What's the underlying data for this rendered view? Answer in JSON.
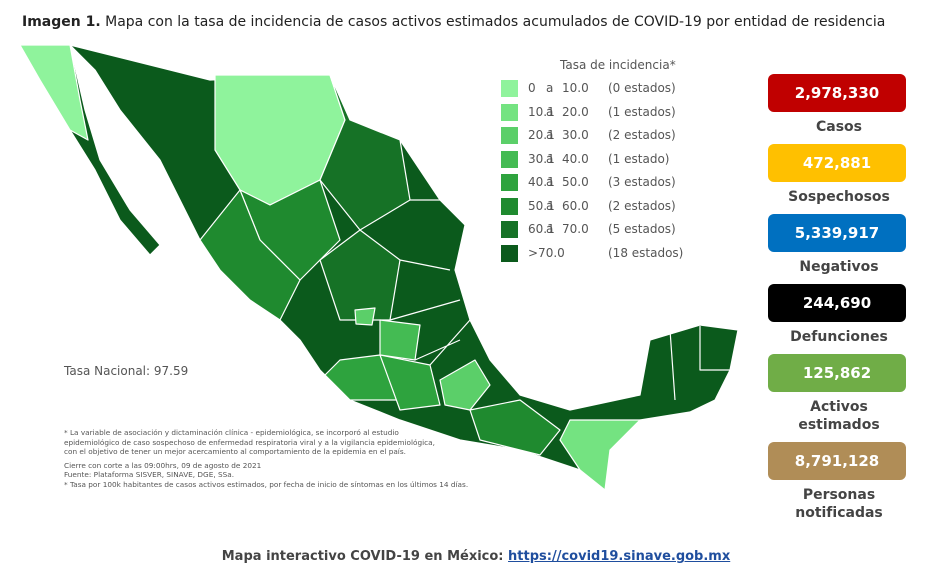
{
  "header": {
    "label": "Imagen 1.",
    "title": "Mapa con la tasa de incidencia de casos activos estimados acumulados de COVID-19 por entidad de residencia"
  },
  "legend": {
    "title": "Tasa de incidencia*",
    "connector": "a",
    "items": [
      {
        "from": "0",
        "to": "10.0",
        "count": "(0 estados)",
        "color": "#8ff39c"
      },
      {
        "from": "10.1",
        "to": "20.0",
        "count": "(1 estados)",
        "color": "#74e381"
      },
      {
        "from": "20.1",
        "to": "30.0",
        "count": "(2 estados)",
        "color": "#5bcf69"
      },
      {
        "from": "30.1",
        "to": "40.0",
        "count": "(1 estado)",
        "color": "#44bb53"
      },
      {
        "from": "40.1",
        "to": "50.0",
        "count": "(3 estados)",
        "color": "#2ea33e"
      },
      {
        "from": "50.1",
        "to": "60.0",
        "count": "(2 estados)",
        "color": "#1f8a2f"
      },
      {
        "from": "60.1",
        "to": "70.0",
        "count": "(5 estados)",
        "color": "#167226"
      },
      {
        "from": ">70.0",
        "count": "(18 estados)",
        "color": "#0b5a1c"
      }
    ]
  },
  "national_rate": "Tasa Nacional: 97.59",
  "notes": [
    "* La variable de asociación y dictaminación clínica - epidemiológica, se incorporó al estudio",
    "epidemiológico de caso sospechoso de enfermedad respiratoria viral y a la vigilancia epidemiológica,",
    "con el objetivo de tener un mejor acercamiento al comportamiento de la epidemia en el país.",
    "Cierre con corte a las 09:00hrs, 09 de agosto de 2021",
    "Fuente: Plataforma SISVER, SINAVE, DGE, SSa.",
    "* Tasa por 100k habitantes de casos activos estimados, por fecha de inicio de síntomas en los últimos 14 días."
  ],
  "stats": [
    {
      "value": "2,978,330",
      "label": "Casos",
      "color": "#c00000"
    },
    {
      "value": "472,881",
      "label": "Sospechosos",
      "color": "#ffc000"
    },
    {
      "value": "5,339,917",
      "label": "Negativos",
      "color": "#0070c0"
    },
    {
      "value": "244,690",
      "label": "Defunciones",
      "color": "#000000"
    },
    {
      "value": "125,862",
      "label": "Activos estimados",
      "color": "#70ad47"
    },
    {
      "value": "8,791,128",
      "label": "Personas notificadas",
      "color": "#b08d57"
    }
  ],
  "footer": {
    "text": "Mapa interactivo COVID-19 en México:",
    "link": "https://covid19.sinave.gob.mx"
  }
}
